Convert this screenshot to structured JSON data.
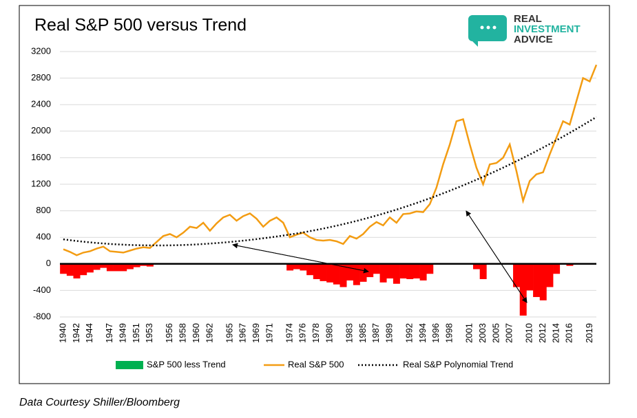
{
  "chart_data": {
    "type": "line",
    "title": "Real S&P 500 versus Trend",
    "x": [
      1940,
      1941,
      1942,
      1943,
      1944,
      1945,
      1946,
      1947,
      1948,
      1949,
      1950,
      1951,
      1952,
      1953,
      1954,
      1955,
      1956,
      1957,
      1958,
      1959,
      1960,
      1961,
      1962,
      1963,
      1964,
      1965,
      1966,
      1967,
      1968,
      1969,
      1970,
      1971,
      1972,
      1973,
      1974,
      1975,
      1976,
      1977,
      1978,
      1979,
      1980,
      1981,
      1982,
      1983,
      1984,
      1985,
      1986,
      1987,
      1988,
      1989,
      1990,
      1991,
      1992,
      1993,
      1994,
      1995,
      1996,
      1997,
      1998,
      1999,
      2000,
      2001,
      2002,
      2003,
      2004,
      2005,
      2006,
      2007,
      2008,
      2009,
      2010,
      2011,
      2012,
      2013,
      2014,
      2015,
      2016,
      2017,
      2018,
      2019,
      2020
    ],
    "series": [
      {
        "name": "S&P 500 less Trend",
        "color": "#00b050",
        "negative_color": "#ff0000",
        "type": "bar",
        "values": [
          -150,
          -180,
          -220,
          -170,
          -130,
          -90,
          -60,
          -110,
          -110,
          -110,
          -80,
          -50,
          -30,
          -40,
          0,
          0,
          0,
          0,
          0,
          0,
          0,
          0,
          0,
          0,
          0,
          0,
          0,
          0,
          0,
          0,
          0,
          0,
          0,
          0,
          -100,
          -80,
          -100,
          -170,
          -230,
          -260,
          -280,
          -310,
          -350,
          -250,
          -320,
          -270,
          -200,
          -150,
          -280,
          -220,
          -300,
          -220,
          -230,
          -220,
          -250,
          -150,
          0,
          0,
          0,
          0,
          0,
          0,
          -80,
          -230,
          0,
          0,
          0,
          0,
          -350,
          -780,
          -400,
          -500,
          -550,
          -350,
          -150,
          0,
          -30,
          0,
          0,
          0,
          0
        ]
      },
      {
        "name": "Real S&P 500",
        "color": "#f39c12",
        "type": "line",
        "values": [
          220,
          180,
          130,
          170,
          190,
          230,
          260,
          190,
          180,
          170,
          200,
          230,
          250,
          240,
          330,
          420,
          450,
          400,
          470,
          560,
          540,
          620,
          500,
          610,
          700,
          740,
          650,
          720,
          760,
          680,
          560,
          650,
          700,
          620,
          400,
          440,
          470,
          400,
          360,
          350,
          360,
          340,
          300,
          420,
          380,
          450,
          560,
          630,
          580,
          700,
          620,
          750,
          760,
          790,
          780,
          900,
          1150,
          1500,
          1800,
          2150,
          2180,
          1800,
          1450,
          1200,
          1500,
          1520,
          1600,
          1800,
          1400,
          950,
          1250,
          1350,
          1380,
          1650,
          1900,
          2150,
          2100,
          2450,
          2800,
          2750,
          3000
        ]
      },
      {
        "name": "Real S&P Polynomial Trend",
        "color": "#000000",
        "type": "dotted",
        "values": [
          370,
          357,
          345,
          334,
          324,
          315,
          307,
          300,
          294,
          289,
          285,
          282,
          280,
          279,
          278,
          278,
          279,
          281,
          284,
          288,
          293,
          299,
          306,
          313,
          321,
          330,
          340,
          350,
          361,
          373,
          385,
          398,
          412,
          427,
          442,
          458,
          475,
          493,
          512,
          532,
          553,
          575,
          598,
          622,
          647,
          673,
          700,
          728,
          757,
          787,
          818,
          850,
          883,
          917,
          952,
          988,
          1025,
          1063,
          1102,
          1142,
          1183,
          1225,
          1268,
          1312,
          1357,
          1403,
          1450,
          1498,
          1547,
          1597,
          1648,
          1700,
          1753,
          1807,
          1862,
          1918,
          1975,
          2033,
          2092,
          2152,
          2213
        ]
      }
    ],
    "xlim": [
      1940,
      2020
    ],
    "xticks": [
      1940,
      1942,
      1944,
      1947,
      1949,
      1951,
      1953,
      1956,
      1958,
      1960,
      1962,
      1965,
      1967,
      1969,
      1971,
      1974,
      1976,
      1978,
      1980,
      1983,
      1985,
      1987,
      1989,
      1992,
      1994,
      1996,
      1998,
      2001,
      2003,
      2005,
      2007,
      2010,
      2012,
      2014,
      2016,
      2019
    ],
    "ylim": [
      -800,
      3200
    ],
    "yticks": [
      -800,
      -400,
      0,
      400,
      800,
      1200,
      1600,
      2000,
      2400,
      2800,
      3200
    ],
    "grid": true
  },
  "logo": [
    "REAL",
    "INVESTMENT",
    "ADVICE"
  ],
  "footer": "Data Courtesy Shiller/Bloomberg"
}
